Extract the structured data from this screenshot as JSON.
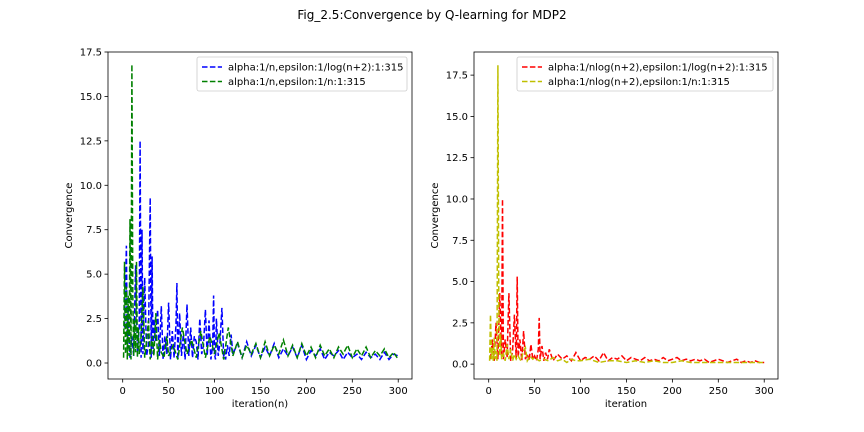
{
  "figure": {
    "title": "Fig_2.5:Convergence by Q-learning for MDP2"
  },
  "chart_data": [
    {
      "type": "line",
      "xlabel": "iteration(n)",
      "ylabel": "Convergence",
      "xlim": [
        -16,
        315
      ],
      "ylim": [
        -0.9,
        17.5
      ],
      "xticks": [
        0,
        50,
        100,
        150,
        200,
        250,
        300
      ],
      "yticks": [
        0.0,
        2.5,
        5.0,
        7.5,
        10.0,
        12.5,
        15.0,
        17.5
      ],
      "ytick_format": 1,
      "legend_position": "upper right",
      "series": [
        {
          "name": "alpha:1/n,epsilon:1/log(n+2):1:315",
          "color": "#0000ff",
          "dash": "dashed",
          "x": [
            2,
            4,
            5,
            6,
            8,
            10,
            12,
            14,
            16,
            18,
            19,
            20,
            21,
            22,
            24,
            26,
            28,
            30,
            31,
            32,
            33,
            34,
            36,
            38,
            40,
            42,
            44,
            46,
            48,
            50,
            52,
            54,
            56,
            58,
            59,
            60,
            62,
            64,
            66,
            68,
            70,
            72,
            74,
            76,
            78,
            80,
            82,
            84,
            86,
            88,
            90,
            92,
            94,
            96,
            98,
            99,
            100,
            101,
            102,
            104,
            106,
            108,
            110,
            111,
            112,
            114,
            116,
            118,
            120,
            125,
            130,
            135,
            140,
            145,
            150,
            155,
            160,
            165,
            170,
            175,
            180,
            185,
            190,
            195,
            200,
            205,
            210,
            215,
            220,
            225,
            230,
            235,
            240,
            245,
            250,
            255,
            260,
            265,
            270,
            275,
            280,
            285,
            290,
            295,
            300
          ],
          "y": [
            2.0,
            6.6,
            0.8,
            3.0,
            0.3,
            1.5,
            0.4,
            5.5,
            0.6,
            2.0,
            12.5,
            0.3,
            7.5,
            0.5,
            4.8,
            0.4,
            1.0,
            9.3,
            0.3,
            6.0,
            0.5,
            2.5,
            1.2,
            3.0,
            0.4,
            3.2,
            0.2,
            1.5,
            0.5,
            3.4,
            0.2,
            1.8,
            0.3,
            2.2,
            4.5,
            0.2,
            2.8,
            0.4,
            1.6,
            0.2,
            3.3,
            0.4,
            2.0,
            0.3,
            1.5,
            1.2,
            0.2,
            2.5,
            0.5,
            1.0,
            3.0,
            0.4,
            2.4,
            0.2,
            1.0,
            3.8,
            0.5,
            0.2,
            2.5,
            0.4,
            1.2,
            3.1,
            0.3,
            0.8,
            0.2,
            1.0,
            0.4,
            1.6,
            0.5,
            1.1,
            0.3,
            1.2,
            0.4,
            1.0,
            0.3,
            0.9,
            0.4,
            1.1,
            0.3,
            0.8,
            0.4,
            0.9,
            0.3,
            1.0,
            0.2,
            0.7,
            0.4,
            0.8,
            0.2,
            0.6,
            0.4,
            0.7,
            0.2,
            0.6,
            0.3,
            0.5,
            0.2,
            0.6,
            0.3,
            0.5,
            0.2,
            0.6,
            0.2,
            0.5,
            0.4
          ]
        },
        {
          "name": "alpha:1/n,epsilon:1/n:1:315",
          "color": "#008000",
          "dash": "dashed",
          "x": [
            1,
            2,
            3,
            4,
            5,
            6,
            7,
            8,
            9,
            10,
            11,
            12,
            13,
            14,
            15,
            16,
            17,
            18,
            20,
            22,
            24,
            26,
            28,
            30,
            32,
            34,
            36,
            38,
            40,
            42,
            45,
            48,
            50,
            55,
            60,
            65,
            70,
            75,
            80,
            85,
            90,
            95,
            100,
            105,
            110,
            115,
            120,
            125,
            130,
            135,
            140,
            145,
            150,
            155,
            160,
            165,
            170,
            175,
            180,
            185,
            190,
            195,
            200,
            205,
            210,
            215,
            220,
            225,
            230,
            235,
            240,
            245,
            250,
            255,
            260,
            265,
            270,
            275,
            280,
            285,
            290,
            295,
            300
          ],
          "y": [
            0.3,
            5.7,
            0.5,
            4.3,
            0.2,
            3.8,
            0.4,
            8.1,
            0.2,
            16.8,
            3.8,
            0.4,
            2.4,
            0.6,
            5.7,
            0.3,
            2.0,
            0.5,
            1.5,
            4.3,
            0.3,
            1.2,
            2.4,
            0.2,
            1.5,
            0.4,
            2.8,
            0.2,
            1.3,
            0.6,
            0.3,
            1.5,
            0.4,
            1.0,
            0.2,
            2.0,
            0.5,
            1.3,
            0.3,
            1.8,
            0.3,
            1.5,
            0.5,
            1.7,
            0.2,
            2.0,
            0.4,
            1.2,
            0.3,
            1.0,
            0.5,
            1.1,
            0.3,
            1.2,
            0.4,
            1.0,
            0.5,
            1.3,
            0.4,
            1.0,
            0.3,
            1.1,
            0.4,
            0.9,
            0.3,
            1.0,
            0.4,
            0.8,
            0.3,
            0.9,
            0.5,
            1.0,
            0.3,
            0.8,
            0.4,
            0.9,
            0.3,
            0.7,
            0.4,
            0.8,
            0.3,
            0.6,
            0.2
          ]
        }
      ]
    },
    {
      "type": "line",
      "xlabel": "iteration",
      "ylabel": "Convergence",
      "xlim": [
        -16,
        315
      ],
      "ylim": [
        -0.9,
        18.9
      ],
      "xticks": [
        0,
        50,
        100,
        150,
        200,
        250,
        300
      ],
      "yticks": [
        0.0,
        2.5,
        5.0,
        7.5,
        10.0,
        12.5,
        15.0,
        17.5
      ],
      "ytick_format": 1,
      "legend_position": "upper right",
      "series": [
        {
          "name": "alpha:1/nlog(n+2),epsilon:1/log(n+2):1:315",
          "color": "#ff0000",
          "dash": "dashed",
          "x": [
            2,
            4,
            6,
            8,
            10,
            12,
            14,
            15,
            16,
            18,
            20,
            22,
            24,
            26,
            28,
            30,
            31,
            32,
            34,
            36,
            38,
            40,
            42,
            44,
            46,
            48,
            50,
            52,
            54,
            55,
            56,
            58,
            60,
            62,
            64,
            66,
            70,
            75,
            80,
            85,
            90,
            95,
            100,
            105,
            110,
            115,
            120,
            125,
            130,
            135,
            140,
            145,
            150,
            155,
            160,
            165,
            170,
            175,
            180,
            185,
            190,
            195,
            200,
            205,
            210,
            215,
            220,
            225,
            230,
            235,
            240,
            245,
            250,
            255,
            260,
            265,
            270,
            275,
            280,
            285,
            290,
            295,
            300
          ],
          "y": [
            0.3,
            1.5,
            0.2,
            2.5,
            0.3,
            4.3,
            0.5,
            10.0,
            0.3,
            1.5,
            0.4,
            4.3,
            0.2,
            0.8,
            3.0,
            0.3,
            5.3,
            0.4,
            1.5,
            0.2,
            2.0,
            0.3,
            0.6,
            0.2,
            1.2,
            0.3,
            0.5,
            0.2,
            0.9,
            2.8,
            0.3,
            1.1,
            0.2,
            0.7,
            0.3,
            0.9,
            0.2,
            0.6,
            0.3,
            0.5,
            0.2,
            0.7,
            0.2,
            0.4,
            0.3,
            0.5,
            0.2,
            0.7,
            0.2,
            0.4,
            0.3,
            0.5,
            0.2,
            0.4,
            0.3,
            0.2,
            0.4,
            0.2,
            0.3,
            0.2,
            0.4,
            0.2,
            0.3,
            0.4,
            0.2,
            0.3,
            0.2,
            0.3,
            0.2,
            0.3,
            0.1,
            0.2,
            0.3,
            0.2,
            0.1,
            0.2,
            0.3,
            0.1,
            0.2,
            0.1,
            0.2,
            0.1,
            0.1
          ]
        },
        {
          "name": "alpha:1/nlog(n+2),epsilon:1/n:1:315",
          "color": "#bfbf00",
          "dash": "dashed",
          "x": [
            1,
            2,
            3,
            4,
            5,
            6,
            7,
            8,
            9,
            10,
            11,
            12,
            13,
            14,
            16,
            18,
            20,
            22,
            24,
            26,
            28,
            30,
            32,
            35,
            38,
            40,
            42,
            45,
            48,
            50,
            55,
            60,
            65,
            70,
            75,
            80,
            85,
            90,
            95,
            100,
            110,
            120,
            130,
            140,
            150,
            160,
            170,
            180,
            190,
            200,
            210,
            220,
            230,
            240,
            250,
            260,
            270,
            280,
            290,
            300
          ],
          "y": [
            0.2,
            3.0,
            0.3,
            1.0,
            0.2,
            1.6,
            0.3,
            0.8,
            0.2,
            18.1,
            3.5,
            0.5,
            1.8,
            0.3,
            0.6,
            0.2,
            1.2,
            0.3,
            0.9,
            0.2,
            0.6,
            0.3,
            0.5,
            0.2,
            0.8,
            1.0,
            0.2,
            0.5,
            0.3,
            0.4,
            0.2,
            0.3,
            0.2,
            0.4,
            0.2,
            0.3,
            0.1,
            0.3,
            0.2,
            0.2,
            0.3,
            0.1,
            0.2,
            0.2,
            0.1,
            0.2,
            0.1,
            0.2,
            0.1,
            0.1,
            0.2,
            0.1,
            0.1,
            0.1,
            0.1,
            0.1,
            0.1,
            0.1,
            0.1,
            0.1
          ]
        }
      ]
    }
  ]
}
